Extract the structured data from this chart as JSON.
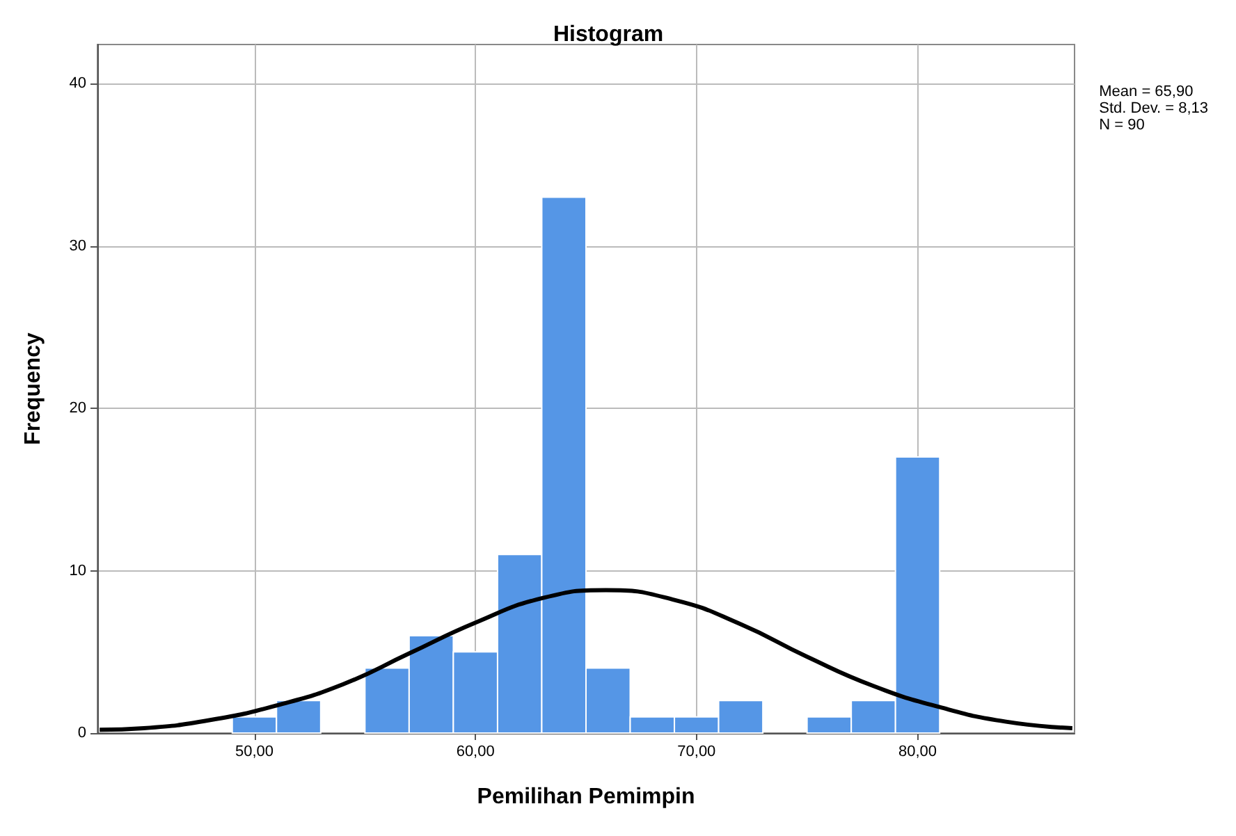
{
  "chart_data": {
    "type": "histogram",
    "title": "Histogram",
    "xlabel": "Pemilihan Pemimpin",
    "ylabel": "Frequency",
    "bins": [
      49,
      51,
      53,
      55,
      57,
      59,
      61,
      63,
      65,
      67,
      69,
      71,
      73,
      75,
      77,
      79,
      81
    ],
    "values": [
      1,
      2,
      0,
      4,
      6,
      5,
      11,
      33,
      4,
      1,
      1,
      2,
      0,
      1,
      2,
      17
    ],
    "color": "#5596e6",
    "series": [
      {
        "type": "line",
        "color": "#000000",
        "x": [
          43,
          45,
          48,
          51,
          54,
          57,
          60,
          63,
          65.9,
          69,
          72,
          75,
          78,
          81,
          84,
          87
        ],
        "values": [
          0.2,
          0.3,
          0.8,
          1.7,
          3.0,
          4.9,
          6.8,
          8.3,
          8.8,
          8.2,
          6.7,
          4.7,
          2.9,
          1.6,
          0.7,
          0.3
        ]
      }
    ],
    "xlim": [
      42.9,
      87.1
    ],
    "xticks": [
      {
        "value": 50,
        "label": "50,00"
      },
      {
        "value": 60,
        "label": "60,00"
      },
      {
        "value": 70,
        "label": "70,00"
      },
      {
        "value": 80,
        "label": "80,00"
      }
    ],
    "ylim": [
      0,
      42.4
    ],
    "yticks": [
      0,
      10,
      20,
      30,
      40
    ],
    "grid": true,
    "annotations": [
      "Mean = 65,90\nStd. Dev. = 8,13\nN = 90"
    ]
  }
}
